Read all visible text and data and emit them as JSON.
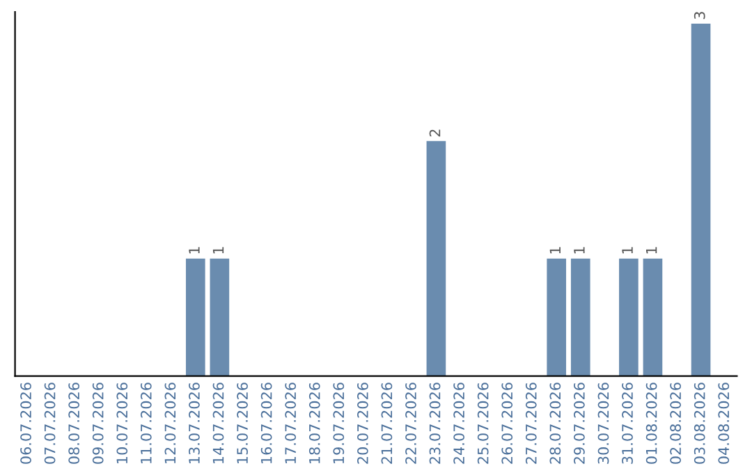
{
  "chart_data": {
    "type": "bar",
    "categories": [
      "06.07.2026",
      "07.07.2026",
      "08.07.2026",
      "09.07.2026",
      "10.07.2026",
      "11.07.2026",
      "12.07.2026",
      "13.07.2026",
      "14.07.2026",
      "15.07.2026",
      "16.07.2026",
      "17.07.2026",
      "18.07.2026",
      "19.07.2026",
      "20.07.2026",
      "21.07.2026",
      "22.07.2026",
      "23.07.2026",
      "24.07.2026",
      "25.07.2026",
      "26.07.2026",
      "27.07.2026",
      "28.07.2026",
      "29.07.2026",
      "30.07.2026",
      "31.07.2026",
      "01.08.2026",
      "02.08.2026",
      "03.08.2026",
      "04.08.2026"
    ],
    "values": [
      0,
      0,
      0,
      0,
      0,
      0,
      0,
      1,
      1,
      0,
      0,
      0,
      0,
      0,
      0,
      0,
      0,
      2,
      0,
      0,
      0,
      0,
      1,
      1,
      0,
      1,
      1,
      0,
      3,
      0
    ],
    "color": "#6a8caf",
    "ylim": [
      0,
      3.1
    ],
    "tick_labels": "x",
    "value_labels": [
      null,
      null,
      null,
      null,
      null,
      null,
      null,
      "1",
      "1",
      null,
      null,
      null,
      null,
      null,
      null,
      null,
      null,
      "2",
      null,
      null,
      null,
      null,
      "1",
      "1",
      null,
      "1",
      "1",
      null,
      "3",
      null
    ],
    "grid": false,
    "legend": false
  }
}
